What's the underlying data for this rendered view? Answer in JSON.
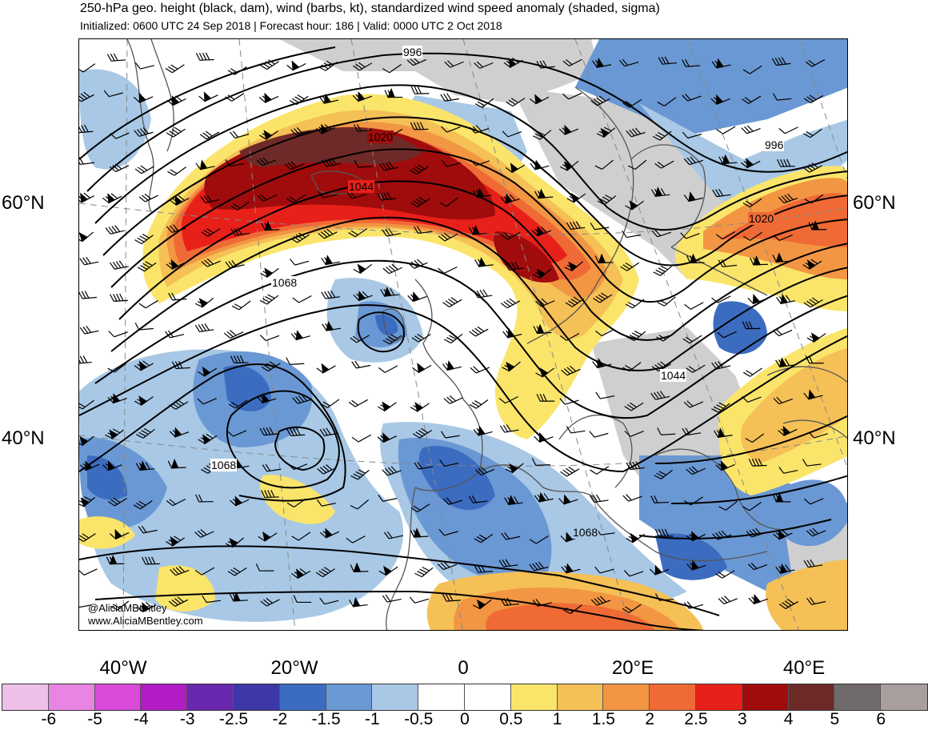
{
  "header": {
    "title": "250-hPa geo. height (black, dam), wind (barbs, kt), standardized wind speed anomaly (shaded, sigma)",
    "subtitle": "Initialized: 0600 UTC 24 Sep 2018 | Forecast hour: 186 | Valid: 0000 UTC 2 Oct 2018"
  },
  "lat_labels": {
    "n60_left": "60°N",
    "n60_right": "60°N",
    "n40_left": "40°N",
    "n40_right": "40°N"
  },
  "lon_labels": [
    "40°W",
    "20°W",
    "0",
    "20°E",
    "40°E"
  ],
  "contour_labels": [
    "996",
    "1020",
    "1044",
    "1068",
    "996",
    "1020",
    "1044",
    "1068",
    "1068"
  ],
  "credits": {
    "handle": "@AliciaMBentley",
    "website": "www.AliciaMBentley.com"
  },
  "colorbar": {
    "colors": [
      "#eec0e8",
      "#e884e2",
      "#d94bd8",
      "#b21cc4",
      "#6a28b0",
      "#3d38a8",
      "#3b6cc0",
      "#6a98d4",
      "#a8c8e6",
      "#ffffff",
      "#ffffff",
      "#fae56a",
      "#f5c056",
      "#f29643",
      "#f06a35",
      "#e8201a",
      "#a00c0c",
      "#6e2a28",
      "#706a6a",
      "#a89e9e"
    ],
    "labels": [
      "-6",
      "-5",
      "-4",
      "-3",
      "-2.5",
      "-2",
      "-1.5",
      "-1",
      "-0.5",
      "0",
      "0.5",
      "1",
      "1.5",
      "2",
      "2.5",
      "3",
      "4",
      "5",
      "6"
    ]
  }
}
